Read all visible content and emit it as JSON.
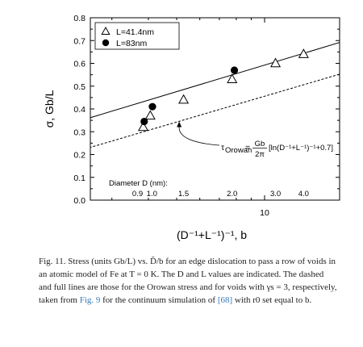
{
  "chart_data": {
    "type": "scatter",
    "xlabel": "(D⁻¹+L⁻¹)⁻¹, b",
    "ylabel": "σ, Gb/L",
    "xscale": "log",
    "ylim": [
      0.0,
      0.8
    ],
    "yticks": [
      0.0,
      0.1,
      0.2,
      0.3,
      0.4,
      0.5,
      0.6,
      0.7,
      0.8
    ],
    "ytick_labels": [
      "0.0",
      "0.1",
      "0.2",
      "0.3",
      "0.4",
      "0.5",
      "0.6",
      "0.7",
      "0.8"
    ],
    "xticks": [
      10
    ],
    "xtick_labels": [
      "10"
    ],
    "legend_position": "top-left",
    "series": [
      {
        "name": "L=41.4nm",
        "marker": "triangle-open",
        "x": [
          3.84,
          4.06,
          5.28,
          7.74,
          10.9,
          13.6
        ],
        "y": [
          0.32,
          0.37,
          0.44,
          0.53,
          0.6,
          0.64
        ]
      },
      {
        "name": "L=83nm",
        "marker": "circle-filled",
        "x": [
          3.87,
          4.13,
          7.88
        ],
        "y": [
          0.345,
          0.41,
          0.57
        ]
      }
    ],
    "lines": [
      {
        "style": "solid",
        "note": "voids",
        "x": [
          2.36,
          21.4
        ],
        "y": [
          0.35,
          0.72
        ]
      },
      {
        "style": "dashed",
        "note": "Orowan",
        "x": [
          2.36,
          21.4
        ],
        "y": [
          0.22,
          0.58
        ]
      }
    ],
    "annotations": {
      "diameter_title": "Diameter D (nm):",
      "diameters": [
        {
          "label": "0.9",
          "x": 3.84
        },
        {
          "label": "1.0",
          "x": 4.06
        },
        {
          "label": "1.5",
          "x": 5.28
        },
        {
          "label": "2.0",
          "x": 7.74
        },
        {
          "label": "3.0",
          "x": 10.9
        },
        {
          "label": "4.0",
          "x": 13.6
        }
      ],
      "orowan_formula_lhs": "τ",
      "orowan_formula_sub": "Orowan",
      "orowan_formula_eq": "=",
      "orowan_formula_num": "Gb",
      "orowan_formula_den": "2π",
      "orowan_formula_rhs": "[ln(D⁻¹+L⁻¹)⁻¹+0.7]",
      "orowan_arrow_target": {
        "x": 5.1,
        "y": 0.345
      }
    }
  },
  "caption": {
    "text_1": "Fig. 11. Stress (units Gb/L) vs. D̃/b for an edge dislocation to pass a row of voids in an atomic model of Fe at T = 0 K. The D and L values are indicated. The dashed and full lines are those for the Orowan stress and for voids with γs = 3, respectively, taken from ",
    "fig_ref": "Fig. 9",
    "text_2": " for the continuum simulation of ",
    "cite": "[68]",
    "text_3": " with r0 set equal to b."
  }
}
